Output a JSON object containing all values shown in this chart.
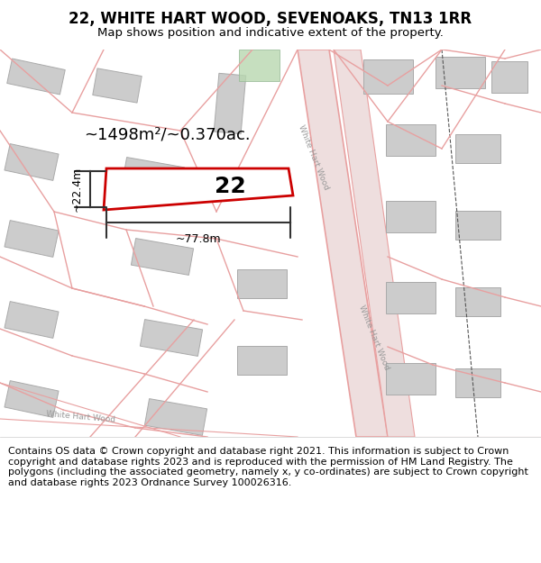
{
  "title": "22, WHITE HART WOOD, SEVENOAKS, TN13 1RR",
  "subtitle": "Map shows position and indicative extent of the property.",
  "footer": "Contains OS data © Crown copyright and database right 2021. This information is subject to Crown copyright and database rights 2023 and is reproduced with the permission of HM Land Registry. The polygons (including the associated geometry, namely x, y co-ordinates) are subject to Crown copyright and database rights 2023 Ordnance Survey 100026316.",
  "area_label": "~1498m²/~0.370ac.",
  "width_label": "~77.8m",
  "height_label": "~22.4m",
  "plot_number": "22",
  "map_bg": "#f0f0f0",
  "plot_fill": "white",
  "plot_edge": "#cc0000",
  "road_color": "#e8a0a0",
  "building_color": "#cccccc",
  "parcel_color": "#e8a0a0",
  "title_fontsize": 12,
  "subtitle_fontsize": 9.5,
  "footer_fontsize": 8.0,
  "road_label_color": "#999999"
}
